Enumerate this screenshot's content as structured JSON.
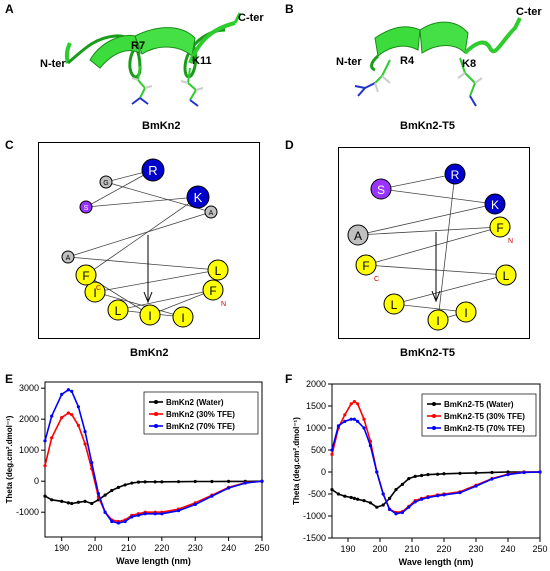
{
  "panels": {
    "A": {
      "letter": "A",
      "caption": "BmKn2",
      "n_ter": "N-ter",
      "c_ter": "C-ter",
      "residues": [
        "R7",
        "K11"
      ]
    },
    "B": {
      "letter": "B",
      "caption": "BmKn2-T5",
      "n_ter": "N-ter",
      "c_ter": "C-ter",
      "residues": [
        "R4",
        "K8"
      ]
    },
    "C": {
      "letter": "C",
      "caption": "BmKn2",
      "wheel_residues": [
        {
          "label": "R",
          "color": "#0000cc",
          "text_color": "#ffffff",
          "size": "large"
        },
        {
          "label": "K",
          "color": "#0000cc",
          "text_color": "#ffffff",
          "size": "large"
        },
        {
          "label": "A",
          "color": "#c0c0c0",
          "text_color": "#000000",
          "size": "small"
        },
        {
          "label": "L",
          "color": "#ffff00",
          "text_color": "#000000",
          "size": "medium"
        },
        {
          "label": "F",
          "color": "#ffff00",
          "text_color": "#000000",
          "size": "medium",
          "tag": "N"
        },
        {
          "label": "I",
          "color": "#ffff00",
          "text_color": "#000000",
          "size": "medium"
        },
        {
          "label": "I",
          "color": "#ffff00",
          "text_color": "#000000",
          "size": "medium"
        },
        {
          "label": "L",
          "color": "#ffff00",
          "text_color": "#000000",
          "size": "medium"
        },
        {
          "label": "I",
          "color": "#ffff00",
          "text_color": "#000000",
          "size": "medium"
        },
        {
          "label": "F",
          "color": "#ffff00",
          "text_color": "#000000",
          "size": "medium",
          "tag": "C"
        },
        {
          "label": "A",
          "color": "#c0c0c0",
          "text_color": "#000000",
          "size": "small"
        },
        {
          "label": "S",
          "color": "#9933ff",
          "text_color": "#ffffff",
          "size": "small"
        },
        {
          "label": "G",
          "color": "#c0c0c0",
          "text_color": "#000000",
          "size": "small"
        }
      ]
    },
    "D": {
      "letter": "D",
      "caption": "BmKn2-T5",
      "wheel_residues": [
        {
          "label": "R",
          "color": "#0000cc",
          "text_color": "#ffffff",
          "size": "medium"
        },
        {
          "label": "K",
          "color": "#0000cc",
          "text_color": "#ffffff",
          "size": "medium"
        },
        {
          "label": "F",
          "color": "#ffff00",
          "text_color": "#000000",
          "size": "medium",
          "tag": "N"
        },
        {
          "label": "L",
          "color": "#ffff00",
          "text_color": "#000000",
          "size": "medium"
        },
        {
          "label": "I",
          "color": "#ffff00",
          "text_color": "#000000",
          "size": "medium"
        },
        {
          "label": "I",
          "color": "#ffff00",
          "text_color": "#000000",
          "size": "medium"
        },
        {
          "label": "L",
          "color": "#ffff00",
          "text_color": "#000000",
          "size": "medium"
        },
        {
          "label": "F",
          "color": "#ffff00",
          "text_color": "#000000",
          "size": "medium",
          "tag": "C"
        },
        {
          "label": "A",
          "color": "#c0c0c0",
          "text_color": "#000000",
          "size": "medium"
        },
        {
          "label": "S",
          "color": "#9933ff",
          "text_color": "#ffffff",
          "size": "medium"
        }
      ]
    },
    "E": {
      "letter": "E"
    },
    "F": {
      "letter": "F"
    }
  },
  "chart_data": [
    {
      "type": "line",
      "panel": "E",
      "xlabel": "Wave length (nm)",
      "ylabel": "Theta (deg.cm².dmol⁻¹)",
      "xlim": [
        185,
        250
      ],
      "ylim": [
        -1800,
        3200
      ],
      "xticks": [
        190,
        200,
        210,
        220,
        230,
        240,
        250
      ],
      "yticks": [
        -1000,
        0,
        1000,
        2000,
        3000
      ],
      "legend": "top-right",
      "x": [
        185,
        187,
        190,
        192,
        193,
        195,
        197,
        199,
        201,
        203,
        205,
        207,
        209,
        211,
        213,
        215,
        218,
        220,
        225,
        230,
        235,
        240,
        245,
        250
      ],
      "series": [
        {
          "name": "BmKn2 (Water)",
          "color": "#000000",
          "values": [
            -480,
            -600,
            -650,
            -700,
            -720,
            -680,
            -650,
            -720,
            -600,
            -450,
            -300,
            -200,
            -120,
            -60,
            -30,
            -20,
            -20,
            -20,
            -15,
            -10,
            -10,
            -5,
            -5,
            0
          ]
        },
        {
          "name": "BmKn2 (30% TFE)",
          "color": "#ff0000",
          "values": [
            500,
            1400,
            2050,
            2200,
            2150,
            1800,
            1200,
            400,
            -500,
            -1000,
            -1250,
            -1300,
            -1250,
            -1100,
            -1050,
            -1000,
            -1000,
            -1000,
            -900,
            -700,
            -450,
            -200,
            -50,
            0
          ]
        },
        {
          "name": "BmKn2 (70% TFE)",
          "color": "#0000ff",
          "values": [
            1300,
            2100,
            2800,
            2950,
            2900,
            2400,
            1600,
            600,
            -400,
            -1000,
            -1300,
            -1350,
            -1300,
            -1150,
            -1100,
            -1050,
            -1050,
            -1050,
            -950,
            -750,
            -480,
            -220,
            -60,
            0
          ]
        }
      ]
    },
    {
      "type": "line",
      "panel": "F",
      "xlabel": "Wave length (nm)",
      "ylabel": "Theta (deg.cm².dmol⁻¹)",
      "xlim": [
        185,
        250
      ],
      "ylim": [
        -1500,
        2000
      ],
      "xticks": [
        190,
        200,
        210,
        220,
        230,
        240,
        250
      ],
      "yticks": [
        -1500,
        -1000,
        -500,
        0,
        500,
        1000,
        1500,
        2000
      ],
      "legend": "top-right",
      "x": [
        185,
        187,
        189,
        191,
        192,
        193,
        195,
        197,
        199,
        201,
        203,
        205,
        207,
        209,
        211,
        213,
        215,
        218,
        220,
        225,
        230,
        235,
        240,
        245,
        250
      ],
      "series": [
        {
          "name": "BmKn2-T5 (Water)",
          "color": "#000000",
          "values": [
            -400,
            -500,
            -550,
            -580,
            -600,
            -620,
            -650,
            -700,
            -800,
            -750,
            -600,
            -400,
            -280,
            -150,
            -100,
            -80,
            -60,
            -50,
            -40,
            -30,
            -20,
            -10,
            0,
            0,
            0
          ]
        },
        {
          "name": "BmKn2-T5 (30% TFE)",
          "color": "#ff0000",
          "values": [
            400,
            1000,
            1300,
            1550,
            1600,
            1550,
            1200,
            700,
            0,
            -500,
            -850,
            -920,
            -900,
            -780,
            -650,
            -600,
            -560,
            -520,
            -500,
            -450,
            -300,
            -150,
            -50,
            0,
            0
          ]
        },
        {
          "name": "BmKn2-T5 (70% TFE)",
          "color": "#0000ff",
          "values": [
            500,
            1050,
            1150,
            1200,
            1200,
            1150,
            1000,
            600,
            0,
            -500,
            -850,
            -950,
            -920,
            -800,
            -680,
            -620,
            -580,
            -540,
            -520,
            -470,
            -320,
            -160,
            -60,
            -10,
            0
          ]
        }
      ]
    }
  ]
}
